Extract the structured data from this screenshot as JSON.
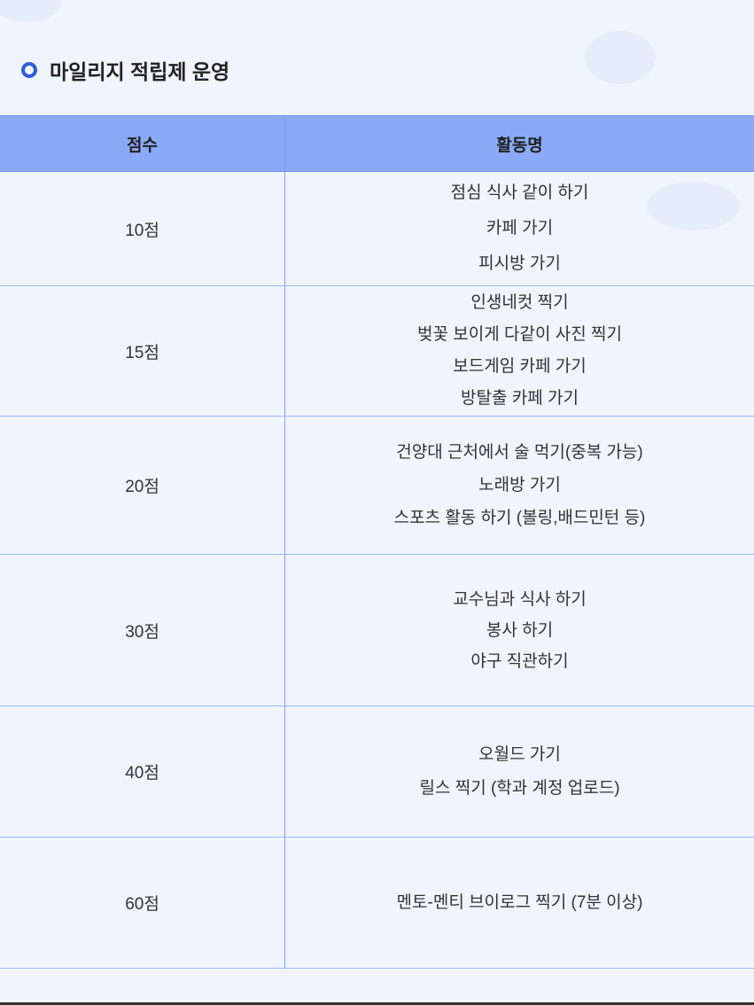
{
  "section": {
    "title": "마일리지 적립제 운영"
  },
  "table": {
    "headers": [
      "점수",
      "활동명"
    ],
    "rows": [
      {
        "score": "10점",
        "activities": [
          "점심 식사 같이 하기",
          "카페 가기",
          "피시방 가기"
        ]
      },
      {
        "score": "15점",
        "activities": [
          "인생네컷 찍기",
          "벚꽃 보이게 다같이 사진 찍기",
          "보드게임 카페 가기",
          "방탈출 카페 가기"
        ]
      },
      {
        "score": "20점",
        "activities": [
          "건양대 근처에서 술 먹기(중복 가능)",
          "노래방 가기",
          "스포츠 활동 하기 (볼링,배드민턴 등)"
        ]
      },
      {
        "score": "30점",
        "activities": [
          "교수님과 식사 하기",
          "봉사 하기",
          "야구 직관하기"
        ]
      },
      {
        "score": "40점",
        "activities": [
          "오월드 가기",
          "릴스 찍기 (학과 계정 업로드)"
        ]
      },
      {
        "score": "60점",
        "activities": [
          "멘토-멘티 브이로그 찍기 (7분 이상)"
        ]
      }
    ]
  },
  "colors": {
    "accent": "#2f5fd6",
    "header_bg": "#8aaaf5",
    "background": "#f0f4fd"
  }
}
